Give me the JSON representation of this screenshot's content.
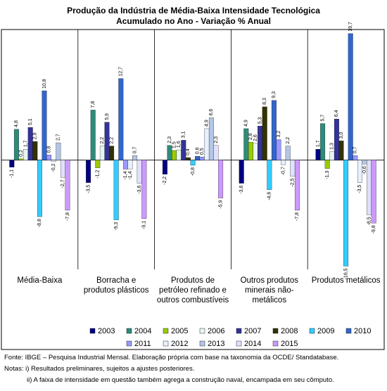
{
  "chart_data": {
    "type": "bar",
    "title": "Produção da Indústria de Média-Baixa Intensidade Tecnológica",
    "subtitle": "Acumulado no Ano - Variação % Anual",
    "categories": [
      "Média-Baixa",
      "Borracha e produtos plásticos",
      "Produtos de petróleo refinado e outros combustíveis",
      "Outros produtos minerais não-metálicos",
      "Produtos metálicos"
    ],
    "ylim": [
      -17,
      20
    ],
    "series": [
      {
        "name": "2003",
        "color": "#000080",
        "values": [
          -1.1,
          -3.5,
          -2.2,
          -3.6,
          1.7
        ],
        "value_labels": [
          "-1,1",
          "-3,5",
          "-2,2",
          "-3,6",
          "1,7"
        ]
      },
      {
        "name": "2004",
        "color": "#2e8b7a",
        "values": [
          4.8,
          7.8,
          2.3,
          4.9,
          5.7
        ],
        "value_labels": [
          "4,8",
          "7,8",
          "2,3",
          "4,9",
          "5,7"
        ]
      },
      {
        "name": "2005",
        "color": "#99cc00",
        "values": [
          0.2,
          -1.2,
          1.5,
          2.8,
          -1.3
        ],
        "value_labels": [
          "0,2",
          "-1,2",
          "1,5",
          "2,8",
          "-1,3"
        ]
      },
      {
        "name": "2006",
        "color": "#e6f5f0",
        "values": [
          1.7,
          2.2,
          1.6,
          2.6,
          1.3
        ],
        "value_labels": [
          "1,7",
          "2,2",
          "1,6",
          "2,6",
          "1,3"
        ]
      },
      {
        "name": "2007",
        "color": "#333399",
        "values": [
          5.1,
          5.9,
          3.1,
          5.3,
          6.4
        ],
        "value_labels": [
          "5,1",
          "5,9",
          "3,1",
          "5,3",
          "6,4"
        ]
      },
      {
        "name": "2008",
        "color": "#333300",
        "values": [
          2.9,
          2.2,
          0.4,
          8.3,
          3.0
        ],
        "value_labels": [
          "2,9",
          "2,2",
          "0,4",
          "8,3",
          "3,0"
        ]
      },
      {
        "name": "2009",
        "color": "#33ccff",
        "values": [
          -8.8,
          -9.3,
          -0.8,
          -4.6,
          -16.5
        ],
        "value_labels": [
          "-8,8",
          "-9,3",
          "-0,8",
          "-4,6",
          "-16,5"
        ]
      },
      {
        "name": "2010",
        "color": "#3366cc",
        "values": [
          10.8,
          12.7,
          0.6,
          9.3,
          19.7
        ],
        "value_labels": [
          "10,8",
          "12,7",
          "0,6",
          "9,3",
          "19,7"
        ]
      },
      {
        "name": "2011",
        "color": "#9999ff",
        "values": [
          0.8,
          -1.4,
          0.5,
          3.2,
          0.7
        ],
        "value_labels": [
          "0,8",
          "-1,4",
          "0,5",
          "3,2",
          "0,7"
        ]
      },
      {
        "name": "2012",
        "color": "#e6f0ff",
        "values": [
          -0.2,
          -1.4,
          4.9,
          -0.7,
          -3.5
        ],
        "value_labels": [
          "-0,2",
          "-1,4",
          "4,9",
          "-0,7",
          "-3,5"
        ]
      },
      {
        "name": "2013",
        "color": "#b3c6e6",
        "values": [
          2.7,
          0.7,
          6.6,
          2.2,
          -0.6
        ],
        "value_labels": [
          "2,7",
          "0,7",
          "6,6",
          "2,2",
          "-0,6"
        ]
      },
      {
        "name": "2014",
        "color": "#e0e0ff",
        "values": [
          -2.7,
          -3.6,
          2.3,
          -2.5,
          -8.5
        ],
        "value_labels": [
          "-2,7",
          "-3,6",
          "2,3",
          "-2,5",
          "-8,5"
        ]
      },
      {
        "name": "2015",
        "color": "#cc99ff",
        "values": [
          -7.8,
          -9.1,
          -5.9,
          -7.8,
          -9.8
        ],
        "value_labels": [
          "-7,8",
          "-9,1",
          "-5,9",
          "-7,8",
          "-9,8"
        ]
      }
    ],
    "source": "Fonte: IBGE – Pesquisa Industrial Mensal. Elaboração própria com base na taxonomia da OCDE/ Standatabase.",
    "notes": [
      "Notas: i) Resultados preliminares, sujeitos a ajustes posteriores.",
      "ii) A faixa de intensidade em questão também agrega a construção naval, encampada em seu cômputo."
    ]
  }
}
